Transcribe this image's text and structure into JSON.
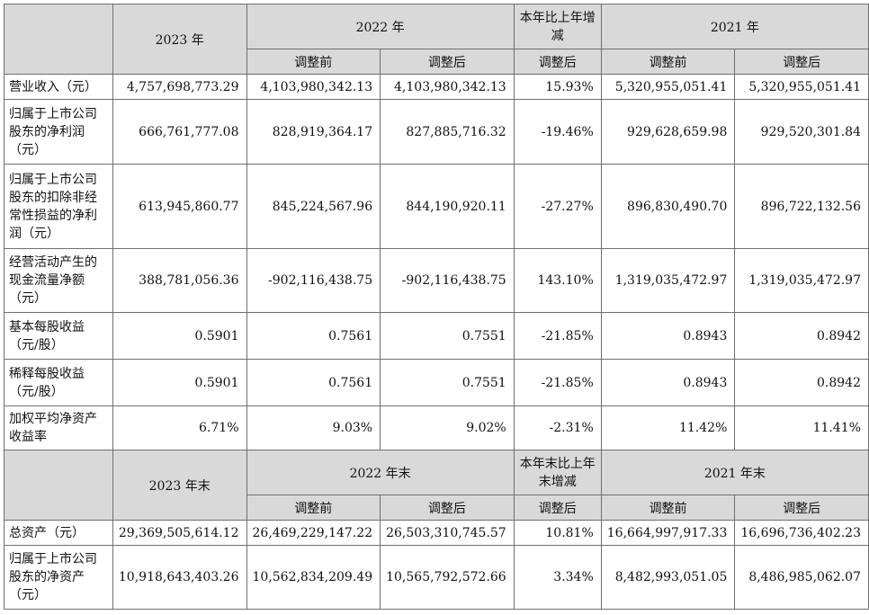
{
  "header1": {
    "y2023": "2023 年",
    "y2022": "2022 年",
    "change": "本年比上年增减",
    "y2021": "2021 年",
    "before_adj": "调整前",
    "after_adj": "调整后"
  },
  "rows1": [
    {
      "label": "营业收入（元）",
      "v2023": "4,757,698,773.29",
      "v2022_before": "4,103,980,342.13",
      "v2022_after": "4,103,980,342.13",
      "change": "15.93%",
      "v2021_before": "5,320,955,051.41",
      "v2021_after": "5,320,955,051.41"
    },
    {
      "label": "归属于上市公司股东的净利润（元）",
      "v2023": "666,761,777.08",
      "v2022_before": "828,919,364.17",
      "v2022_after": "827,885,716.32",
      "change": "-19.46%",
      "v2021_before": "929,628,659.98",
      "v2021_after": "929,520,301.84"
    },
    {
      "label": "归属于上市公司股东的扣除非经常性损益的净利润（元）",
      "v2023": "613,945,860.77",
      "v2022_before": "845,224,567.96",
      "v2022_after": "844,190,920.11",
      "change": "-27.27%",
      "v2021_before": "896,830,490.70",
      "v2021_after": "896,722,132.56"
    },
    {
      "label": "经营活动产生的现金流量净额（元）",
      "v2023": "388,781,056.36",
      "v2022_before": "-902,116,438.75",
      "v2022_after": "-902,116,438.75",
      "change": "143.10%",
      "v2021_before": "1,319,035,472.97",
      "v2021_after": "1,319,035,472.97"
    },
    {
      "label": "基本每股收益（元/股）",
      "v2023": "0.5901",
      "v2022_before": "0.7561",
      "v2022_after": "0.7551",
      "change": "-21.85%",
      "v2021_before": "0.8943",
      "v2021_after": "0.8942"
    },
    {
      "label": "稀释每股收益（元/股）",
      "v2023": "0.5901",
      "v2022_before": "0.7561",
      "v2022_after": "0.7551",
      "change": "-21.85%",
      "v2021_before": "0.8943",
      "v2021_after": "0.8942"
    },
    {
      "label": "加权平均净资产收益率",
      "v2023": "6.71%",
      "v2022_before": "9.03%",
      "v2022_after": "9.02%",
      "change": "-2.31%",
      "v2021_before": "11.42%",
      "v2021_after": "11.41%"
    }
  ],
  "header2": {
    "y2023": "2023 年末",
    "y2022": "2022 年末",
    "change": "本年末比上年末增减",
    "y2021": "2021 年末",
    "before_adj": "调整前",
    "after_adj": "调整后"
  },
  "rows2": [
    {
      "label": "总资产（元）",
      "v2023": "29,369,505,614.12",
      "v2022_before": "26,469,229,147.22",
      "v2022_after": "26,503,310,745.57",
      "change": "10.81%",
      "v2021_before": "16,664,997,917.33",
      "v2021_after": "16,696,736,402.23"
    },
    {
      "label": "归属于上市公司股东的净资产（元）",
      "v2023": "10,918,643,403.26",
      "v2022_before": "10,562,834,209.49",
      "v2022_after": "10,565,792,572.66",
      "change": "3.34%",
      "v2021_before": "8,482,993,051.05",
      "v2021_after": "8,486,985,062.07"
    }
  ]
}
